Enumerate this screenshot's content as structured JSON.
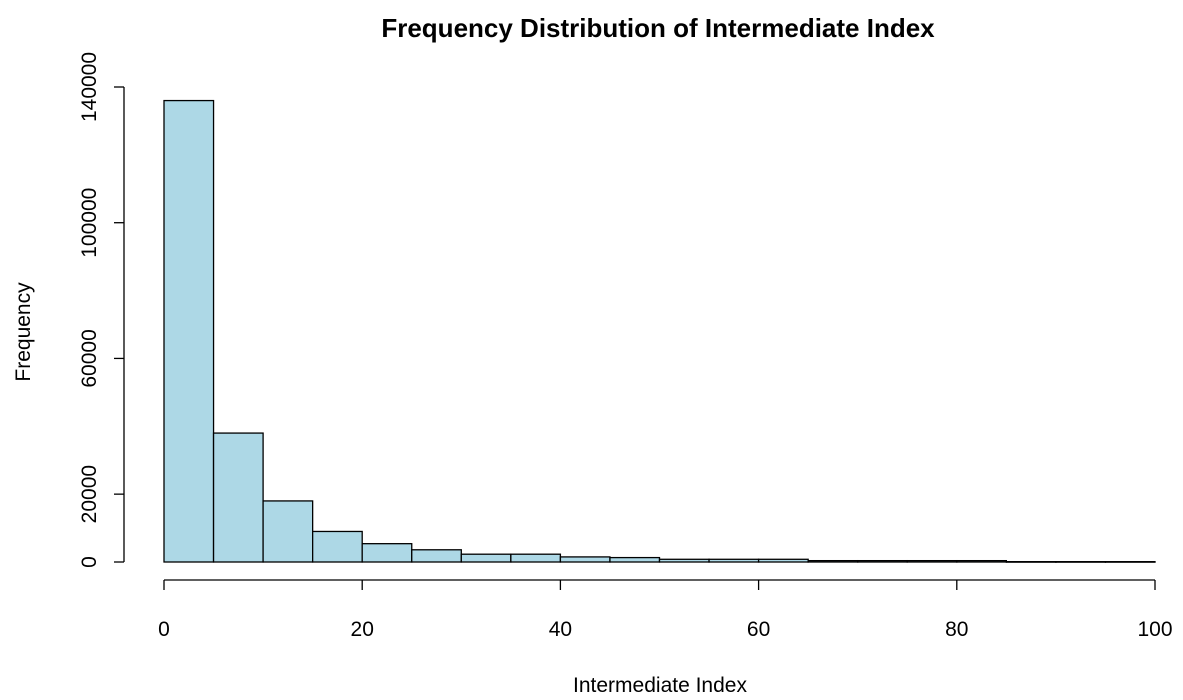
{
  "chart_data": {
    "type": "histogram",
    "title": "Frequency Distribution of Intermediate Index",
    "xlabel": "Intermediate Index",
    "ylabel": "Frequency",
    "xlim": [
      0,
      100
    ],
    "ylim": [
      0,
      140000
    ],
    "x_ticks": [
      0,
      20,
      40,
      60,
      80,
      100
    ],
    "y_ticks": [
      0,
      20000,
      60000,
      100000,
      140000
    ],
    "bin_width": 5,
    "bins": [
      {
        "start": 0,
        "end": 5,
        "count": 136000
      },
      {
        "start": 5,
        "end": 10,
        "count": 38000
      },
      {
        "start": 10,
        "end": 15,
        "count": 18000
      },
      {
        "start": 15,
        "end": 20,
        "count": 9000
      },
      {
        "start": 20,
        "end": 25,
        "count": 5400
      },
      {
        "start": 25,
        "end": 30,
        "count": 3600
      },
      {
        "start": 30,
        "end": 35,
        "count": 2300
      },
      {
        "start": 35,
        "end": 40,
        "count": 2300
      },
      {
        "start": 40,
        "end": 45,
        "count": 1500
      },
      {
        "start": 45,
        "end": 50,
        "count": 1300
      },
      {
        "start": 50,
        "end": 55,
        "count": 800
      },
      {
        "start": 55,
        "end": 60,
        "count": 800
      },
      {
        "start": 60,
        "end": 65,
        "count": 800
      },
      {
        "start": 65,
        "end": 70,
        "count": 400
      },
      {
        "start": 70,
        "end": 75,
        "count": 400
      },
      {
        "start": 75,
        "end": 80,
        "count": 400
      },
      {
        "start": 80,
        "end": 85,
        "count": 400
      },
      {
        "start": 85,
        "end": 90,
        "count": 100
      },
      {
        "start": 90,
        "end": 95,
        "count": 100
      },
      {
        "start": 95,
        "end": 100,
        "count": 100
      }
    ],
    "bar_color": "#add8e6",
    "border_color": "#000000"
  }
}
